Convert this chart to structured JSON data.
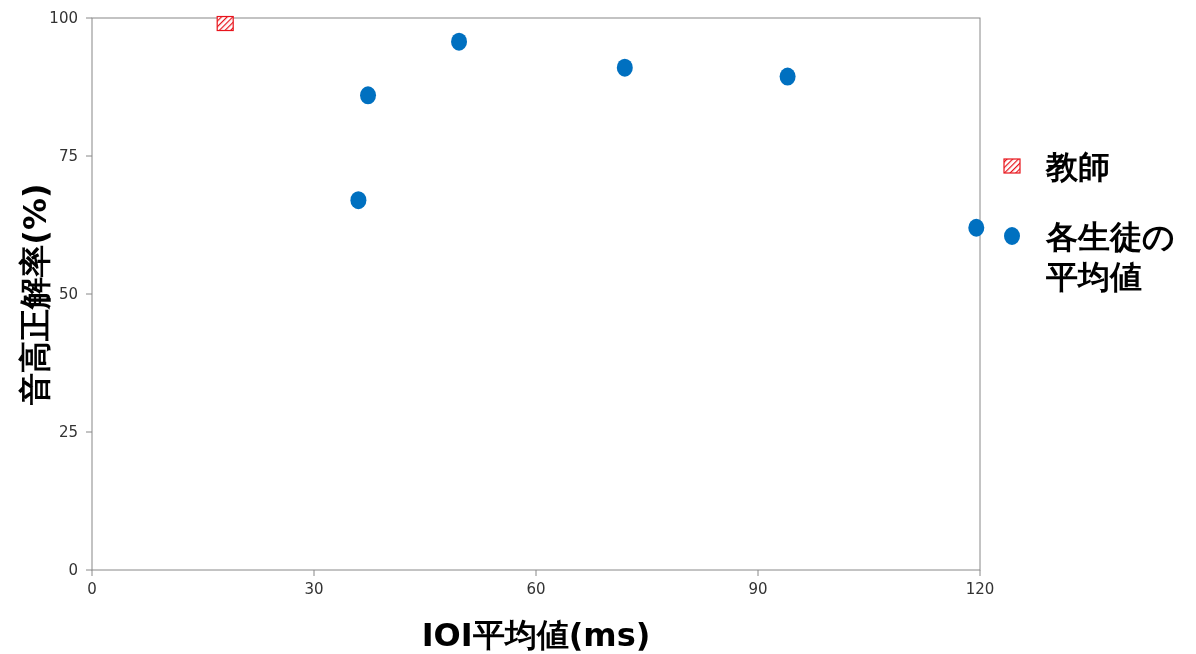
{
  "chart_data": {
    "type": "scatter",
    "xlabel": "IOI平均値(ms)",
    "ylabel": "音高正解率(%)",
    "xlim": [
      0,
      120
    ],
    "ylim": [
      0,
      100
    ],
    "xticks": [
      0,
      30,
      60,
      90,
      120
    ],
    "yticks": [
      0,
      25,
      50,
      75,
      100
    ],
    "legend": "right",
    "grid": false,
    "series": [
      {
        "name": "教師",
        "color": "#e8141c",
        "marker": "square",
        "x": [
          18
        ],
        "values": [
          99
        ]
      },
      {
        "name": "各生徒の平均値",
        "color": "#0070c0",
        "marker": "circle",
        "x": [
          36,
          37.3,
          49.6,
          72,
          94,
          119.5
        ],
        "values": [
          67,
          86,
          95.7,
          91,
          89.4,
          62
        ]
      }
    ]
  }
}
